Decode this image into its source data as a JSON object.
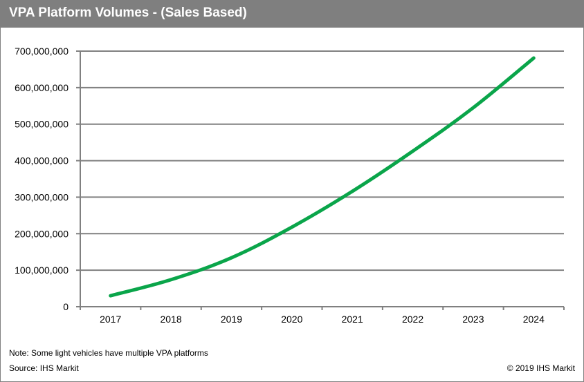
{
  "header": {
    "title": "VPA Platform Volumes - (Sales Based)"
  },
  "footer": {
    "note": "Note: Some light vehicles have multiple VPA platforms",
    "source": "Source: IHS Markit",
    "copyright": "© 2019 IHS Markit"
  },
  "colors": {
    "header_bg": "#7f7f7f",
    "line": "#0aa54a",
    "grid": "#808080"
  },
  "chart_data": {
    "type": "line",
    "title": "VPA Platform Volumes - (Sales Based)",
    "xlabel": "",
    "ylabel": "",
    "categories": [
      "2017",
      "2018",
      "2019",
      "2020",
      "2021",
      "2022",
      "2023",
      "2024"
    ],
    "series": [
      {
        "name": "VPA Platform Volumes",
        "values": [
          30000000,
          74000000,
          134000000,
          218000000,
          316000000,
          426000000,
          545000000,
          681000000
        ]
      }
    ],
    "ylim": [
      0,
      700000000
    ],
    "yticks": [
      0,
      100000000,
      200000000,
      300000000,
      400000000,
      500000000,
      600000000,
      700000000
    ],
    "ytick_labels": [
      "0",
      "100,000,000",
      "200,000,000",
      "300,000,000",
      "400,000,000",
      "500,000,000",
      "600,000,000",
      "700,000,000"
    ],
    "grid": true,
    "legend": "none"
  }
}
